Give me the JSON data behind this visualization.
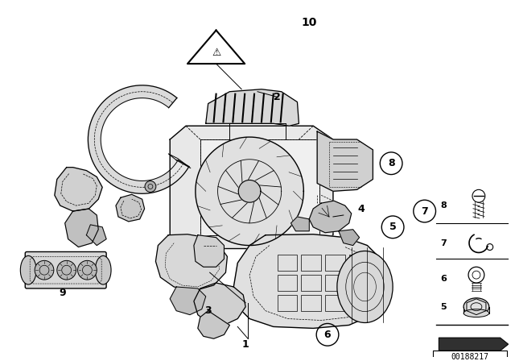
{
  "background_color": "#ffffff",
  "image_id": "00188217",
  "line_color": "#000000",
  "text_color": "#000000",
  "figsize": [
    6.4,
    4.48
  ],
  "dpi": 100
}
